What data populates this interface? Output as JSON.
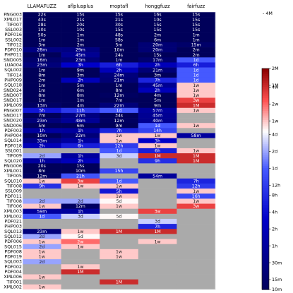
{
  "chart_data": {
    "type": "heatmap",
    "columns": [
      "LLAMAFUZZ",
      "aflplusplus",
      "moptafl",
      "honggfuzz",
      "fairfuzz"
    ],
    "rows": [
      {
        "label": "PNG003",
        "values": [
          "22s",
          "15s",
          "15s",
          "16s",
          "15s"
        ]
      },
      {
        "label": "XML017",
        "values": [
          "43s",
          "21s",
          "21s",
          "10s",
          "15s"
        ]
      },
      {
        "label": "TIF007",
        "values": [
          "28s",
          "20s",
          "30s",
          "15s",
          "15s"
        ]
      },
      {
        "label": "SSL003",
        "values": [
          "10s",
          "10s",
          "15s",
          "15s",
          "15s"
        ]
      },
      {
        "label": "PDF016",
        "values": [
          "50s",
          "1m",
          "48s",
          "2m",
          "1m"
        ]
      },
      {
        "label": "SSL002",
        "values": [
          "1m",
          "1m",
          "58s",
          "6m",
          "1m"
        ]
      },
      {
        "label": "TIF012",
        "values": [
          "3m",
          "2m",
          "5m",
          "20m",
          "15m"
        ]
      },
      {
        "label": "PDF010",
        "values": [
          "28m",
          "29m",
          "10m",
          "20m",
          "2m"
        ]
      },
      {
        "label": "PHP011",
        "values": [
          "1m",
          "45m",
          "24s",
          "15s",
          "2m"
        ]
      },
      {
        "label": "SND005",
        "values": [
          "16m",
          "23m",
          "1m",
          "17m",
          "1d"
        ]
      },
      {
        "label": "LUA004",
        "values": [
          "23m",
          "3h",
          "6h",
          "2h",
          "6h"
        ]
      },
      {
        "label": "SQL002",
        "values": [
          "1m",
          "9m",
          "2h",
          "21m",
          "1d"
        ]
      },
      {
        "label": "TIF014",
        "values": [
          "8m",
          "3m",
          "24m",
          "3m",
          "1d"
        ]
      },
      {
        "label": "PHP009",
        "values": [
          "2m",
          "2h",
          "21m",
          "7h",
          "1d"
        ]
      },
      {
        "label": "SQL018",
        "values": [
          "1m",
          "5m",
          "1m",
          "45m",
          "1w"
        ]
      },
      {
        "label": "SND024",
        "values": [
          "1m",
          "6m",
          "8m",
          "2h",
          "1w"
        ]
      },
      {
        "label": "SND007",
        "values": [
          "8m",
          "8m",
          "12m",
          "4m",
          "1w"
        ]
      },
      {
        "label": "SND017",
        "values": [
          "1m",
          "1m",
          "7m",
          "5m",
          "3w"
        ]
      },
      {
        "label": "XML009",
        "values": [
          "13m",
          "4m",
          "22m",
          "9m",
          "1M"
        ]
      },
      {
        "label": "PNG007",
        "values": [
          "5h",
          "11h",
          "1d",
          "57m",
          "1w"
        ]
      },
      {
        "label": "SND017",
        "values": [
          "7m",
          "27m",
          "34s",
          "45m",
          ""
        ]
      },
      {
        "label": "SND020",
        "values": [
          "23m",
          "48m",
          "12m",
          "40m",
          ""
        ]
      },
      {
        "label": "SND006",
        "values": [
          "5m",
          "6m",
          "9m",
          "1d",
          "1w"
        ]
      },
      {
        "label": "PDF003",
        "values": [
          "1h",
          "1h",
          "7h",
          "14h",
          ""
        ]
      },
      {
        "label": "PHP004",
        "values": [
          "10m",
          "22m",
          "1w",
          "1w",
          "58m"
        ]
      },
      {
        "label": "SQL014",
        "values": [
          "33m",
          "1h",
          "1w",
          "3h",
          ""
        ]
      },
      {
        "label": "PDF018",
        "values": [
          "2h",
          "6h",
          "12h",
          "1w",
          ""
        ]
      },
      {
        "label": "SSL001",
        "values": [
          "",
          "",
          "1d",
          "6h",
          "1w"
        ]
      },
      {
        "label": "TIF009",
        "values": [
          "2d",
          "1h",
          "3d",
          "1M",
          "1M"
        ]
      },
      {
        "label": "SQL020",
        "values": [
          "1h",
          "2h",
          "",
          "9h",
          "1M"
        ]
      },
      {
        "label": "PNG006",
        "values": [
          "20s",
          "15s",
          "",
          "",
          ""
        ]
      },
      {
        "label": "XML001",
        "values": [
          "8m",
          "10m",
          "15h",
          "",
          ""
        ]
      },
      {
        "label": "TIF005",
        "values": [
          "12m",
          "21h",
          "",
          "54m",
          ""
        ]
      },
      {
        "label": "SQL010",
        "values": [
          "1w",
          "3w",
          "1d",
          "",
          "7h"
        ]
      },
      {
        "label": "TIF008",
        "values": [
          "9h",
          "1w",
          "1w",
          "",
          "12h"
        ]
      },
      {
        "label": "SSL009",
        "values": [
          "",
          "",
          "5h",
          "",
          "1w"
        ]
      },
      {
        "label": "PDF011",
        "values": [
          "",
          "",
          "1w",
          "",
          "16h"
        ]
      },
      {
        "label": "TIF008",
        "values": [
          "2d",
          "2d",
          "5d",
          "",
          "1w"
        ]
      },
      {
        "label": "TIF006",
        "values": [
          "1w",
          "12m",
          "1w",
          "",
          "3w"
        ]
      },
      {
        "label": "XML003",
        "values": [
          "59m",
          "1h",
          "",
          "3w",
          ""
        ]
      },
      {
        "label": "XML002",
        "values": [
          "1d",
          "3d",
          "5d",
          "",
          ""
        ]
      },
      {
        "label": "PDF021",
        "values": [
          "",
          "",
          "",
          "3d",
          ""
        ]
      },
      {
        "label": "PHP003",
        "values": [
          "",
          "",
          "",
          "7h",
          ""
        ]
      },
      {
        "label": "SQL013",
        "values": [
          "23m",
          "1w",
          "1M",
          "1M",
          ""
        ]
      },
      {
        "label": "SQL012",
        "values": [
          "2d",
          "5d",
          "",
          "",
          ""
        ]
      },
      {
        "label": "PDF006",
        "values": [
          "1w",
          "2w",
          "",
          "1w",
          ""
        ]
      },
      {
        "label": "SQL015",
        "values": [
          "2d",
          "1w",
          "",
          "",
          ""
        ]
      },
      {
        "label": "PDF008",
        "values": [
          "1w",
          "",
          "1w",
          "",
          ""
        ]
      },
      {
        "label": "PDF019",
        "values": [
          "1w",
          "",
          "1w",
          "",
          ""
        ]
      },
      {
        "label": "SQL003",
        "values": [
          "2d",
          "",
          "",
          "",
          ""
        ]
      },
      {
        "label": "PDF002",
        "values": [
          "",
          "1w",
          "",
          "",
          ""
        ]
      },
      {
        "label": "PDF004",
        "values": [
          "",
          "1M",
          "",
          "",
          ""
        ]
      },
      {
        "label": "XML006",
        "values": [
          "1w",
          "",
          "",
          "",
          ""
        ]
      },
      {
        "label": "TIF001",
        "values": [
          "",
          "",
          "1M",
          "",
          ""
        ]
      },
      {
        "label": "XML002",
        "values": [
          "1w",
          "",
          "",
          "",
          ""
        ]
      }
    ],
    "top_label": "4M",
    "colorbar_ticks": [
      "2M",
      "1M",
      "4w",
      "2w",
      "1w",
      "4d",
      "2d",
      "1d",
      "12h",
      "8h",
      "4h",
      "2h",
      "1h",
      "30m",
      "15m",
      "10m"
    ],
    "colors": {
      "missing": "#aaaaaa",
      "low": "#000080",
      "mid": "#ffffff",
      "high": "#8b0000"
    }
  }
}
